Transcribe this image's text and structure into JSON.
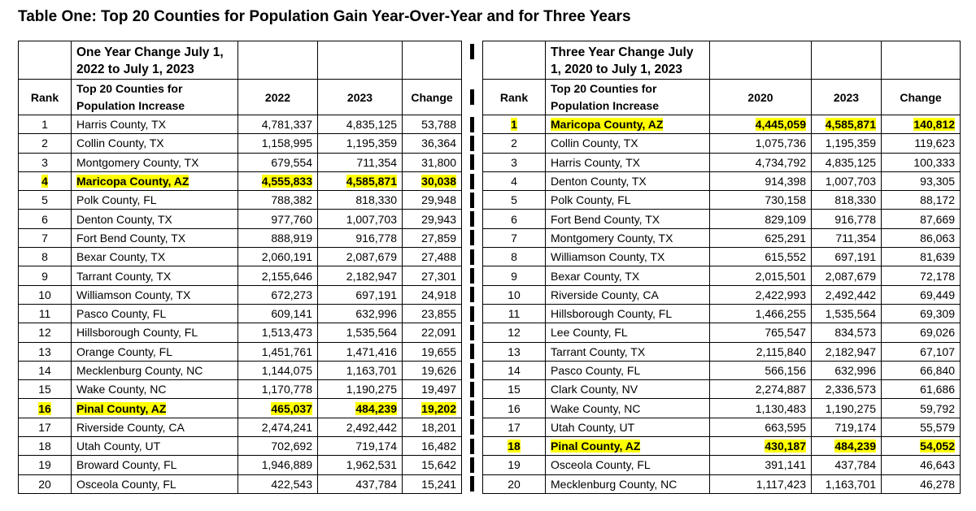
{
  "title": "Table One: Top 20 Counties for Population Gain Year-Over-Year and for Three Years",
  "tables": [
    {
      "heading": "One Year Change July 1, 2022 to July 1, 2023",
      "columns": [
        "Rank",
        "Top 20 Counties for Population Increase",
        "2022",
        "2023",
        "Change"
      ],
      "highlighted_rows": [
        3,
        15
      ],
      "rows": [
        [
          "1",
          "Harris County, TX",
          "4,781,337",
          "4,835,125",
          "53,788"
        ],
        [
          "2",
          "Collin County, TX",
          "1,158,995",
          "1,195,359",
          "36,364"
        ],
        [
          "3",
          "Montgomery County, TX",
          "679,554",
          "711,354",
          "31,800"
        ],
        [
          "4",
          "Maricopa County, AZ",
          "4,555,833",
          "4,585,871",
          "30,038"
        ],
        [
          "5",
          "Polk County, FL",
          "788,382",
          "818,330",
          "29,948"
        ],
        [
          "6",
          "Denton County, TX",
          "977,760",
          "1,007,703",
          "29,943"
        ],
        [
          "7",
          "Fort Bend County, TX",
          "888,919",
          "916,778",
          "27,859"
        ],
        [
          "8",
          "Bexar County, TX",
          "2,060,191",
          "2,087,679",
          "27,488"
        ],
        [
          "9",
          "Tarrant County, TX",
          "2,155,646",
          "2,182,947",
          "27,301"
        ],
        [
          "10",
          "Williamson County, TX",
          "672,273",
          "697,191",
          "24,918"
        ],
        [
          "11",
          "Pasco County, FL",
          "609,141",
          "632,996",
          "23,855"
        ],
        [
          "12",
          "Hillsborough County, FL",
          "1,513,473",
          "1,535,564",
          "22,091"
        ],
        [
          "13",
          "Orange County, FL",
          "1,451,761",
          "1,471,416",
          "19,655"
        ],
        [
          "14",
          "Mecklenburg County, NC",
          "1,144,075",
          "1,163,701",
          "19,626"
        ],
        [
          "15",
          "Wake County, NC",
          "1,170,778",
          "1,190,275",
          "19,497"
        ],
        [
          "16",
          "Pinal County, AZ",
          "465,037",
          "484,239",
          "19,202"
        ],
        [
          "17",
          "Riverside County, CA",
          "2,474,241",
          "2,492,442",
          "18,201"
        ],
        [
          "18",
          "Utah County, UT",
          "702,692",
          "719,174",
          "16,482"
        ],
        [
          "19",
          "Broward County, FL",
          "1,946,889",
          "1,962,531",
          "15,642"
        ],
        [
          "20",
          "Osceola County, FL",
          "422,543",
          "437,784",
          "15,241"
        ]
      ]
    },
    {
      "heading": "Three Year Change July 1, 2020 to July 1, 2023",
      "columns": [
        "Rank",
        "Top 20 Counties for Population Increase",
        "2020",
        "2023",
        "Change"
      ],
      "highlighted_rows": [
        0,
        17
      ],
      "rows": [
        [
          "1",
          "Maricopa County, AZ",
          "4,445,059",
          "4,585,871",
          "140,812"
        ],
        [
          "2",
          "Collin County, TX",
          "1,075,736",
          "1,195,359",
          "119,623"
        ],
        [
          "3",
          "Harris County, TX",
          "4,734,792",
          "4,835,125",
          "100,333"
        ],
        [
          "4",
          "Denton County, TX",
          "914,398",
          "1,007,703",
          "93,305"
        ],
        [
          "5",
          "Polk County, FL",
          "730,158",
          "818,330",
          "88,172"
        ],
        [
          "6",
          "Fort Bend County, TX",
          "829,109",
          "916,778",
          "87,669"
        ],
        [
          "7",
          "Montgomery County, TX",
          "625,291",
          "711,354",
          "86,063"
        ],
        [
          "8",
          "Williamson County, TX",
          "615,552",
          "697,191",
          "81,639"
        ],
        [
          "9",
          "Bexar County, TX",
          "2,015,501",
          "2,087,679",
          "72,178"
        ],
        [
          "10",
          "Riverside County, CA",
          "2,422,993",
          "2,492,442",
          "69,449"
        ],
        [
          "11",
          "Hillsborough County, FL",
          "1,466,255",
          "1,535,564",
          "69,309"
        ],
        [
          "12",
          "Lee County, FL",
          "765,547",
          "834,573",
          "69,026"
        ],
        [
          "13",
          "Tarrant County, TX",
          "2,115,840",
          "2,182,947",
          "67,107"
        ],
        [
          "14",
          "Pasco County, FL",
          "566,156",
          "632,996",
          "66,840"
        ],
        [
          "15",
          "Clark County, NV",
          "2,274,887",
          "2,336,573",
          "61,686"
        ],
        [
          "16",
          "Wake County, NC",
          "1,130,483",
          "1,190,275",
          "59,792"
        ],
        [
          "17",
          "Utah County, UT",
          "663,595",
          "719,174",
          "55,579"
        ],
        [
          "18",
          "Pinal County, AZ",
          "430,187",
          "484,239",
          "54,052"
        ],
        [
          "19",
          "Osceola County, FL",
          "391,141",
          "437,784",
          "46,643"
        ],
        [
          "20",
          "Mecklenburg County, NC",
          "1,117,423",
          "1,163,701",
          "46,278"
        ]
      ]
    }
  ]
}
